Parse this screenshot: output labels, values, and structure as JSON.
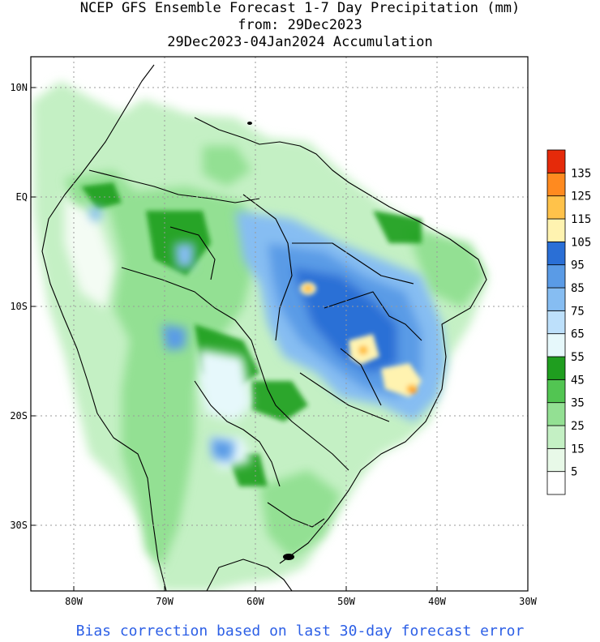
{
  "header": {
    "title_line1": "NCEP GFS Ensemble Forecast 1-7 Day Precipitation (mm)",
    "title_line2": "from: 29Dec2023",
    "title_line3": "29Dec2023-04Jan2024 Accumulation"
  },
  "axes": {
    "lat_labels": [
      "10N",
      "EQ",
      "10S",
      "20S",
      "30S"
    ],
    "lon_labels": [
      "80W",
      "70W",
      "60W",
      "50W",
      "40W",
      "30W"
    ]
  },
  "legend": {
    "labels": [
      "5",
      "15",
      "25",
      "35",
      "45",
      "55",
      "65",
      "75",
      "85",
      "95",
      "105",
      "115",
      "125",
      "135"
    ],
    "colors": [
      "#ffffff",
      "#e8f9e8",
      "#c4f0c4",
      "#93e093",
      "#52c552",
      "#1f9e1f",
      "#e6f8fb",
      "#bde0fb",
      "#86bdf2",
      "#5a9be6",
      "#2a6fd6",
      "#fff3b0",
      "#ffc24a",
      "#ff8a1f",
      "#e52a0a"
    ]
  },
  "footer": {
    "note": "Bias correction based on last 30-day forecast error"
  }
}
